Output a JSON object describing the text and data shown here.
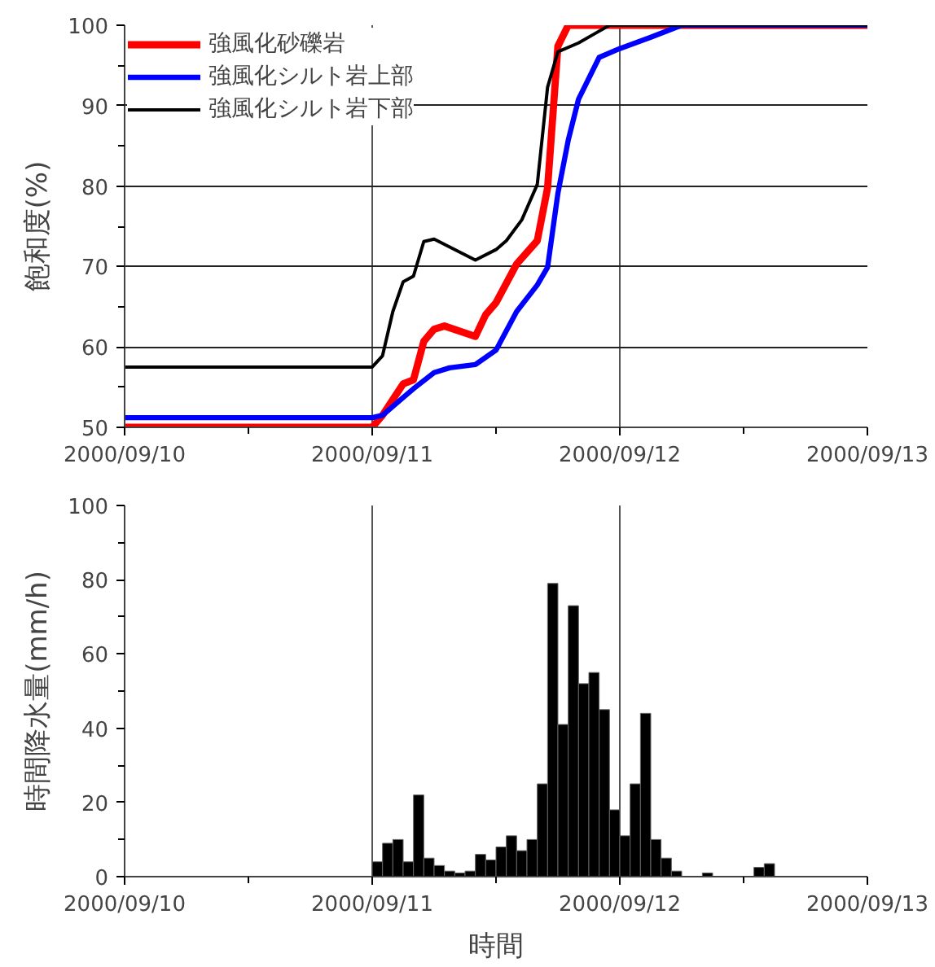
{
  "chart_data": [
    {
      "type": "line",
      "ylabel": "飽和度(%)",
      "legend": "top left",
      "grid": true,
      "xlim": [
        "2000-09-10T00:00",
        "2000-09-13T00:00"
      ],
      "ylim": [
        50,
        100
      ],
      "xticks": [
        {
          "value": "2000-09-10T00:00",
          "label": "2000/09/10"
        },
        {
          "value": "2000-09-10T12:00",
          "label": null
        },
        {
          "value": "2000-09-11T00:00",
          "label": "2000/09/11"
        },
        {
          "value": "2000-09-11T12:00",
          "label": null
        },
        {
          "value": "2000-09-12T00:00",
          "label": "2000/09/12"
        },
        {
          "value": "2000-09-12T12:00",
          "label": null
        },
        {
          "value": "2000-09-13T00:00",
          "label": "2000/09/13"
        }
      ],
      "yticks": [
        50,
        {
          "value": 55,
          "label": null
        },
        60,
        {
          "value": 65,
          "label": null
        },
        70,
        {
          "value": 75,
          "label": null
        },
        80,
        {
          "value": 85,
          "label": null
        },
        90,
        {
          "value": 95,
          "label": null
        },
        100
      ],
      "series": [
        {
          "name": "強風化砂礫岩",
          "color": "#ff0000",
          "x": [
            "2000-09-10T00:00",
            "2000-09-11T00:00",
            "2000-09-11T01:00",
            "2000-09-11T03:00",
            "2000-09-11T04:00",
            "2000-09-11T05:00",
            "2000-09-11T06:00",
            "2000-09-11T07:00",
            "2000-09-11T10:00",
            "2000-09-11T11:00",
            "2000-09-11T12:00",
            "2000-09-11T14:00",
            "2000-09-11T16:00",
            "2000-09-11T17:00",
            "2000-09-11T18:00",
            "2000-09-11T19:00",
            "2000-09-13T00:00"
          ],
          "values": [
            50,
            50,
            51.5,
            55.4,
            55.9,
            60.7,
            62.2,
            62.6,
            61.3,
            64.0,
            65.5,
            70.3,
            73.2,
            79.8,
            97.4,
            100,
            100
          ]
        },
        {
          "name": "強風化シルト岩上部",
          "color": "#0000ff",
          "x": [
            "2000-09-10T00:00",
            "2000-09-11T00:00",
            "2000-09-11T01:00",
            "2000-09-11T03:00",
            "2000-09-11T04:00",
            "2000-09-11T06:00",
            "2000-09-11T07:30",
            "2000-09-11T10:00",
            "2000-09-11T12:00",
            "2000-09-11T14:00",
            "2000-09-11T16:00",
            "2000-09-11T17:00",
            "2000-09-11T18:00",
            "2000-09-11T19:00",
            "2000-09-11T20:00",
            "2000-09-11T22:00",
            "2000-09-12T00:00",
            "2000-09-12T03:00",
            "2000-09-12T06:00",
            "2000-09-13T00:00"
          ],
          "values": [
            51.2,
            51.2,
            51.5,
            53.7,
            54.8,
            56.8,
            57.4,
            57.8,
            59.6,
            64.4,
            67.7,
            69.9,
            79.1,
            85.7,
            90.8,
            96.0,
            97.1,
            98.5,
            100,
            100
          ]
        },
        {
          "name": "強風化シルト岩下部",
          "color": "#000000",
          "x": [
            "2000-09-10T00:00",
            "2000-09-11T00:00",
            "2000-09-11T01:00",
            "2000-09-11T02:00",
            "2000-09-11T03:00",
            "2000-09-11T04:00",
            "2000-09-11T05:00",
            "2000-09-11T06:00",
            "2000-09-11T10:00",
            "2000-09-11T12:00",
            "2000-09-11T13:00",
            "2000-09-11T14:30",
            "2000-09-11T16:00",
            "2000-09-11T17:00",
            "2000-09-11T18:00",
            "2000-09-11T20:00",
            "2000-09-11T21:30",
            "2000-09-11T23:00",
            "2000-09-13T00:00"
          ],
          "values": [
            57.5,
            57.5,
            58.9,
            64.4,
            68.1,
            68.8,
            73.1,
            73.4,
            70.8,
            72.1,
            73.2,
            75.8,
            80.2,
            92.3,
            96.7,
            97.8,
            98.9,
            100,
            100
          ]
        }
      ]
    },
    {
      "type": "bar",
      "ylabel": "時間降水量(mm/h)",
      "xlabel": "時間",
      "grid": "x",
      "xlim": [
        "2000-09-10T00:00",
        "2000-09-13T00:00"
      ],
      "ylim": [
        0,
        100
      ],
      "xticks": [
        {
          "value": "2000-09-10T00:00",
          "label": "2000/09/10"
        },
        {
          "value": "2000-09-10T12:00",
          "label": null
        },
        {
          "value": "2000-09-11T00:00",
          "label": "2000/09/11"
        },
        {
          "value": "2000-09-11T12:00",
          "label": null
        },
        {
          "value": "2000-09-12T00:00",
          "label": "2000/09/12"
        },
        {
          "value": "2000-09-12T12:00",
          "label": null
        },
        {
          "value": "2000-09-13T00:00",
          "label": "2000/09/13"
        }
      ],
      "yticks": [
        0,
        {
          "value": 10,
          "label": null
        },
        20,
        {
          "value": 30,
          "label": null
        },
        40,
        {
          "value": 50,
          "label": null
        },
        60,
        {
          "value": 70,
          "label": null
        },
        80,
        {
          "value": 90,
          "label": null
        },
        100
      ],
      "series": [
        {
          "color": "#000000",
          "x": [
            "2000-09-11T00:30",
            "2000-09-11T01:30",
            "2000-09-11T02:30",
            "2000-09-11T03:30",
            "2000-09-11T04:30",
            "2000-09-11T05:30",
            "2000-09-11T06:30",
            "2000-09-11T07:30",
            "2000-09-11T08:30",
            "2000-09-11T09:30",
            "2000-09-11T10:30",
            "2000-09-11T11:30",
            "2000-09-11T12:30",
            "2000-09-11T13:30",
            "2000-09-11T14:30",
            "2000-09-11T15:30",
            "2000-09-11T16:30",
            "2000-09-11T17:30",
            "2000-09-11T18:30",
            "2000-09-11T19:30",
            "2000-09-11T20:30",
            "2000-09-11T21:30",
            "2000-09-11T22:30",
            "2000-09-11T23:30",
            "2000-09-12T00:30",
            "2000-09-12T01:30",
            "2000-09-12T02:30",
            "2000-09-12T03:30",
            "2000-09-12T04:30",
            "2000-09-12T05:30",
            "2000-09-12T08:30",
            "2000-09-12T13:30",
            "2000-09-12T14:30"
          ],
          "values": [
            4,
            9,
            10,
            4,
            22,
            5,
            3,
            1.5,
            1,
            1.5,
            6,
            4.5,
            8,
            11,
            7,
            10,
            25,
            79,
            41,
            73,
            52,
            55,
            45,
            18,
            11,
            25,
            44,
            10,
            5,
            1.5,
            1,
            2.5,
            3.5
          ]
        }
      ]
    }
  ]
}
